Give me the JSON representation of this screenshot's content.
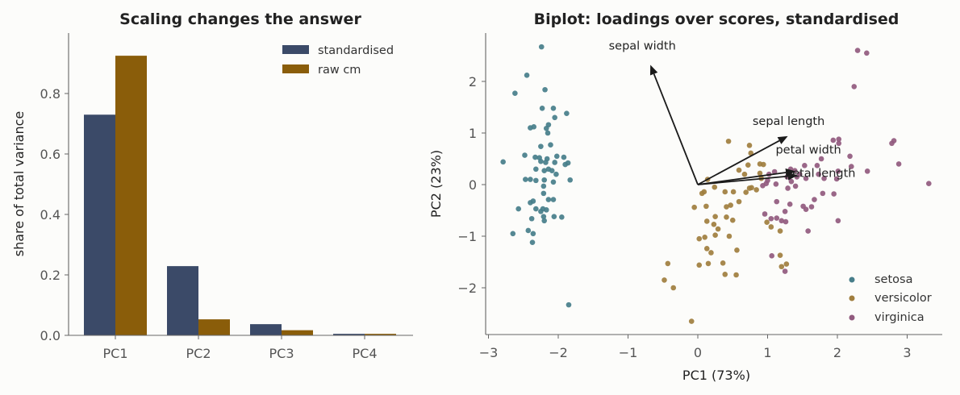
{
  "chart_data": [
    {
      "type": "bar",
      "title": "Scaling changes the answer",
      "ylabel": "share of total variance",
      "xlabel": "",
      "categories": [
        "PC1",
        "PC2",
        "PC3",
        "PC4"
      ],
      "ylim": [
        0,
        1.0
      ],
      "yticks": [
        0.0,
        0.2,
        0.4,
        0.6,
        0.8
      ],
      "ytick_labels": [
        "0.0",
        "0.2",
        "0.4",
        "0.6",
        "0.8"
      ],
      "legend_position": "top-right",
      "series": [
        {
          "name": "standardised",
          "color": "#3b4a68",
          "values": [
            0.73,
            0.229,
            0.037,
            0.005
          ]
        },
        {
          "name": "raw cm",
          "color": "#8a5d0a",
          "values": [
            0.925,
            0.053,
            0.017,
            0.005
          ]
        }
      ]
    },
    {
      "type": "scatter",
      "title": "Biplot: loadings over scores, standardised",
      "xlabel": "PC1 (73%)",
      "ylabel": "PC2 (23%)",
      "xlim": [
        -3.1,
        3.45
      ],
      "ylim": [
        -2.9,
        2.9
      ],
      "xticks": [
        -3,
        -2,
        -1,
        0,
        1,
        2,
        3
      ],
      "xtick_labels": [
        "−3",
        "−2",
        "−1",
        "0",
        "1",
        "2",
        "3"
      ],
      "yticks": [
        -2,
        -1,
        0,
        1,
        2
      ],
      "ytick_labels": [
        "−2",
        "−1",
        "0",
        "1",
        "2"
      ],
      "legend_position": "bottom-right",
      "series": [
        {
          "name": "setosa",
          "color": "#477e8a",
          "points": [
            [
              -2.24,
              2.67
            ],
            [
              -2.45,
              2.12
            ],
            [
              -2.19,
              1.84
            ],
            [
              -2.62,
              1.77
            ],
            [
              -2.23,
              1.48
            ],
            [
              -2.07,
              1.48
            ],
            [
              -1.88,
              1.38
            ],
            [
              -2.05,
              1.3
            ],
            [
              -2.14,
              1.16
            ],
            [
              -2.4,
              1.1
            ],
            [
              -2.35,
              1.12
            ],
            [
              -2.17,
              1.09
            ],
            [
              -2.15,
              1.0
            ],
            [
              -2.11,
              0.77
            ],
            [
              -2.25,
              0.74
            ],
            [
              -2.48,
              0.57
            ],
            [
              -2.27,
              0.52
            ],
            [
              -2.33,
              0.53
            ],
            [
              -2.16,
              0.5
            ],
            [
              -2.02,
              0.55
            ],
            [
              -1.92,
              0.53
            ],
            [
              -2.18,
              0.43
            ],
            [
              -2.25,
              0.45
            ],
            [
              -2.79,
              0.44
            ],
            [
              -2.05,
              0.43
            ],
            [
              -1.86,
              0.42
            ],
            [
              -1.9,
              0.39
            ],
            [
              -2.32,
              0.3
            ],
            [
              -2.14,
              0.3
            ],
            [
              -2.2,
              0.27
            ],
            [
              -2.09,
              0.27
            ],
            [
              -2.03,
              0.2
            ],
            [
              -2.47,
              0.1
            ],
            [
              -2.4,
              0.1
            ],
            [
              -2.32,
              0.08
            ],
            [
              -1.83,
              0.09
            ],
            [
              -2.2,
              0.09
            ],
            [
              -2.07,
              0.05
            ],
            [
              -2.21,
              -0.03
            ],
            [
              -2.21,
              -0.17
            ],
            [
              -2.36,
              -0.32
            ],
            [
              -2.4,
              -0.35
            ],
            [
              -2.14,
              -0.29
            ],
            [
              -2.32,
              -0.47
            ],
            [
              -2.07,
              -0.29
            ],
            [
              -2.57,
              -0.47
            ],
            [
              -2.22,
              -0.47
            ],
            [
              -2.25,
              -0.52
            ],
            [
              -2.17,
              -0.49
            ],
            [
              -2.38,
              -0.66
            ],
            [
              -2.21,
              -0.62
            ],
            [
              -2.06,
              -0.62
            ],
            [
              -1.95,
              -0.63
            ],
            [
              -2.2,
              -0.7
            ],
            [
              -2.43,
              -0.89
            ],
            [
              -2.36,
              -0.95
            ],
            [
              -2.65,
              -0.95
            ],
            [
              -2.37,
              -1.12
            ],
            [
              -1.85,
              -2.33
            ]
          ]
        },
        {
          "name": "versicolor",
          "color": "#a07e3e",
          "points": [
            [
              0.44,
              0.84
            ],
            [
              0.76,
              0.61
            ],
            [
              0.74,
              0.76
            ],
            [
              0.72,
              0.38
            ],
            [
              0.89,
              0.4
            ],
            [
              0.94,
              0.39
            ],
            [
              0.67,
              0.2
            ],
            [
              0.59,
              0.28
            ],
            [
              0.89,
              0.22
            ],
            [
              0.91,
              0.12
            ],
            [
              0.14,
              0.1
            ],
            [
              0.09,
              -0.14
            ],
            [
              0.06,
              -0.17
            ],
            [
              0.24,
              -0.05
            ],
            [
              0.39,
              -0.14
            ],
            [
              0.51,
              -0.14
            ],
            [
              0.74,
              -0.07
            ],
            [
              0.77,
              -0.06
            ],
            [
              0.84,
              -0.1
            ],
            [
              0.69,
              -0.15
            ],
            [
              0.59,
              -0.33
            ],
            [
              0.47,
              -0.4
            ],
            [
              0.41,
              -0.43
            ],
            [
              0.12,
              -0.42
            ],
            [
              -0.05,
              -0.44
            ],
            [
              0.25,
              -0.62
            ],
            [
              0.23,
              -0.77
            ],
            [
              0.13,
              -0.71
            ],
            [
              0.29,
              -0.86
            ],
            [
              0.41,
              -0.63
            ],
            [
              0.5,
              -0.69
            ],
            [
              0.99,
              -0.73
            ],
            [
              1.18,
              -0.9
            ],
            [
              1.05,
              -0.82
            ],
            [
              0.25,
              -0.98
            ],
            [
              0.02,
              -1.05
            ],
            [
              0.1,
              -1.02
            ],
            [
              0.45,
              -1.0
            ],
            [
              0.13,
              -1.24
            ],
            [
              0.19,
              -1.32
            ],
            [
              0.56,
              -1.27
            ],
            [
              0.36,
              -1.52
            ],
            [
              0.15,
              -1.53
            ],
            [
              0.02,
              -1.56
            ],
            [
              -0.43,
              -1.53
            ],
            [
              1.18,
              -1.37
            ],
            [
              1.27,
              -1.54
            ],
            [
              1.2,
              -1.59
            ],
            [
              0.39,
              -1.74
            ],
            [
              0.55,
              -1.75
            ],
            [
              -0.48,
              -1.85
            ],
            [
              -0.35,
              -2.0
            ],
            [
              -0.09,
              -2.65
            ]
          ]
        },
        {
          "name": "virginica",
          "color": "#915a7e",
          "points": [
            [
              2.29,
              2.6
            ],
            [
              2.42,
              2.55
            ],
            [
              2.24,
              1.9
            ],
            [
              2.81,
              0.85
            ],
            [
              2.78,
              0.8
            ],
            [
              2.02,
              0.88
            ],
            [
              1.94,
              0.86
            ],
            [
              2.02,
              0.8
            ],
            [
              2.18,
              0.55
            ],
            [
              2.88,
              0.4
            ],
            [
              2.2,
              0.35
            ],
            [
              2.43,
              0.26
            ],
            [
              1.77,
              0.5
            ],
            [
              1.53,
              0.37
            ],
            [
              1.71,
              0.37
            ],
            [
              1.33,
              0.3
            ],
            [
              1.39,
              0.27
            ],
            [
              1.73,
              0.2
            ],
            [
              1.55,
              0.12
            ],
            [
              1.1,
              0.25
            ],
            [
              1.3,
              0.2
            ],
            [
              1.46,
              0.2
            ],
            [
              1.02,
              0.2
            ],
            [
              1.0,
              0.08
            ],
            [
              0.93,
              -0.02
            ],
            [
              0.98,
              0.02
            ],
            [
              1.12,
              0.01
            ],
            [
              1.29,
              -0.07
            ],
            [
              1.4,
              -0.03
            ],
            [
              1.42,
              0.15
            ],
            [
              1.28,
              0.15
            ],
            [
              1.34,
              0.06
            ],
            [
              1.81,
              0.12
            ],
            [
              1.99,
              0.11
            ],
            [
              2.01,
              0.26
            ],
            [
              1.79,
              -0.17
            ],
            [
              1.95,
              -0.18
            ],
            [
              1.67,
              -0.29
            ],
            [
              1.32,
              -0.38
            ],
            [
              1.13,
              -0.33
            ],
            [
              1.51,
              -0.42
            ],
            [
              1.63,
              -0.43
            ],
            [
              1.55,
              -0.48
            ],
            [
              1.25,
              -0.52
            ],
            [
              0.96,
              -0.57
            ],
            [
              1.13,
              -0.65
            ],
            [
              1.05,
              -0.66
            ],
            [
              1.2,
              -0.7
            ],
            [
              1.26,
              -0.72
            ],
            [
              1.58,
              -0.9
            ],
            [
              2.01,
              -0.7
            ],
            [
              1.06,
              -1.38
            ],
            [
              1.25,
              -1.68
            ],
            [
              3.31,
              0.02
            ]
          ]
        }
      ],
      "loadings": [
        {
          "label": "sepal length",
          "x": 1.29,
          "y": 0.94
        },
        {
          "label": "sepal width",
          "x": -0.68,
          "y": 2.32
        },
        {
          "label": "petal length",
          "x": 1.43,
          "y": 0.18
        },
        {
          "label": "petal width",
          "x": 1.4,
          "y": 0.26
        }
      ]
    }
  ]
}
